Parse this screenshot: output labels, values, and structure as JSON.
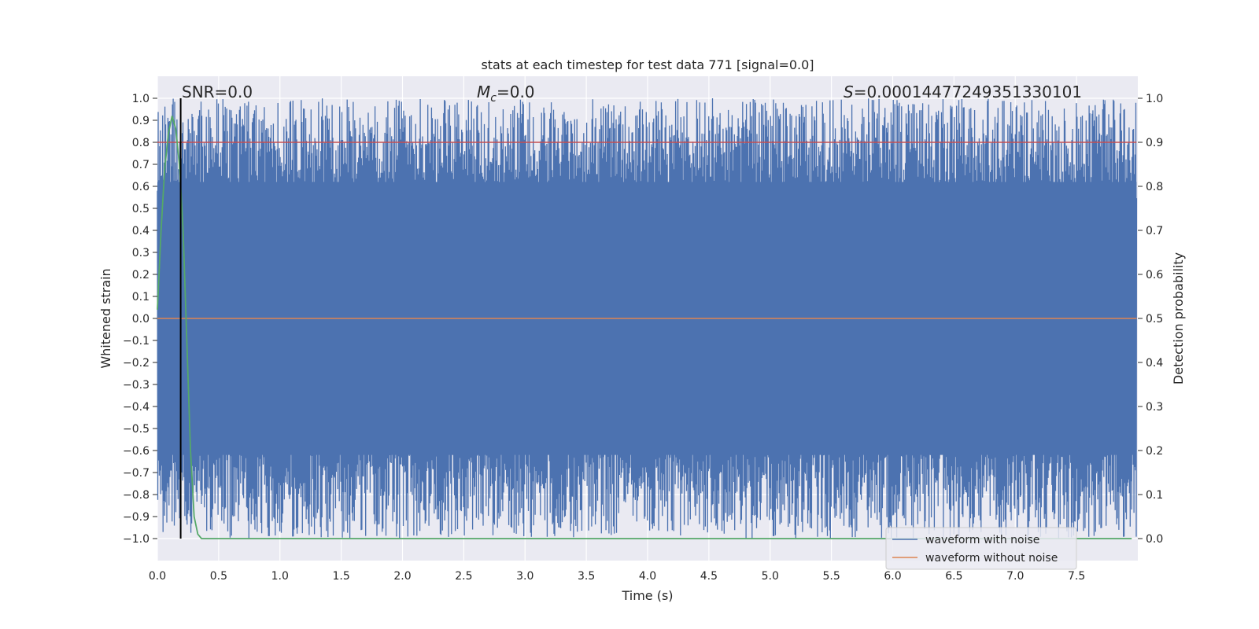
{
  "chart_data": {
    "type": "line",
    "title": "stats at each timestep for test data 771 [signal=0.0]",
    "xlabel": "Time (s)",
    "ylabel_left": "Whitened strain",
    "ylabel_right": "Detection probability",
    "xlim": [
      0.0,
      8.0
    ],
    "ylim_left": [
      -1.1,
      1.1
    ],
    "ylim_right": [
      -0.05,
      1.05
    ],
    "xticks": [
      0.0,
      0.5,
      1.0,
      1.5,
      2.0,
      2.5,
      3.0,
      3.5,
      4.0,
      4.5,
      5.0,
      5.5,
      6.0,
      6.5,
      7.0,
      7.5
    ],
    "xtick_labels": [
      "0.0",
      "0.5",
      "1.0",
      "1.5",
      "2.0",
      "2.5",
      "3.0",
      "3.5",
      "4.0",
      "4.5",
      "5.0",
      "5.5",
      "6.0",
      "6.5",
      "7.0",
      "7.5"
    ],
    "yticks_left": [
      1.0,
      0.9,
      0.8,
      0.7,
      0.6,
      0.5,
      0.4,
      0.3,
      0.2,
      0.1,
      0.0,
      -0.1,
      -0.2,
      -0.3,
      -0.4,
      -0.5,
      -0.6,
      -0.7,
      -0.8,
      -0.9,
      -1.0
    ],
    "ytick_labels_left": [
      "1.0",
      "0.9",
      "0.8",
      "0.7",
      "0.6",
      "0.5",
      "0.4",
      "0.3",
      "0.2",
      "0.1",
      "0.0",
      "−0.1",
      "−0.2",
      "−0.3",
      "−0.4",
      "−0.5",
      "−0.6",
      "−0.7",
      "−0.8",
      "−0.9",
      "−1.0"
    ],
    "yticks_right": [
      1.0,
      0.9,
      0.8,
      0.7,
      0.6,
      0.5,
      0.4,
      0.3,
      0.2,
      0.1,
      0.0
    ],
    "ytick_labels_right": [
      "1.0",
      "0.9",
      "0.8",
      "0.7",
      "0.6",
      "0.5",
      "0.4",
      "0.3",
      "0.2",
      "0.1",
      "0.0"
    ],
    "annotations": {
      "snr": "SNR=0.0",
      "mc_symbol": "M",
      "mc_sub": "c",
      "mc_value": "=0.0",
      "s_symbol": "S",
      "s_value": "=0.00014477249351330101"
    },
    "vertical_line_x": 0.19,
    "vertical_line_range": [
      -1.0,
      1.0
    ],
    "series": [
      {
        "name": "waveform with noise",
        "color": "#4c72b0",
        "kind": "noise",
        "t_range": [
          0.0,
          7.99
        ],
        "amplitude_range": [
          -1.0,
          1.0
        ]
      },
      {
        "name": "waveform without noise",
        "color": "#dd8452",
        "kind": "constant",
        "value": 0.0
      },
      {
        "name": "detection threshold",
        "color": "#c44e52",
        "kind": "threshold",
        "right_axis_value": 0.9
      },
      {
        "name": "detection probability",
        "color": "#55a868",
        "kind": "right_axis",
        "x": [
          0.0,
          0.03,
          0.06,
          0.09,
          0.12,
          0.15,
          0.18,
          0.21,
          0.24,
          0.27,
          0.3,
          0.33,
          0.36,
          0.4,
          1.0,
          3.0,
          5.0,
          7.0,
          7.95
        ],
        "y": [
          0.52,
          0.7,
          0.84,
          0.92,
          0.96,
          0.93,
          0.85,
          0.7,
          0.45,
          0.2,
          0.05,
          0.01,
          0.0,
          0.0,
          0.0,
          0.0,
          0.0,
          0.0,
          0.0
        ]
      }
    ],
    "legend": {
      "position": "lower-right",
      "entries": [
        {
          "label": "waveform with noise",
          "color": "#4c72b0"
        },
        {
          "label": "waveform without noise",
          "color": "#dd8452"
        }
      ]
    },
    "grid": true
  }
}
